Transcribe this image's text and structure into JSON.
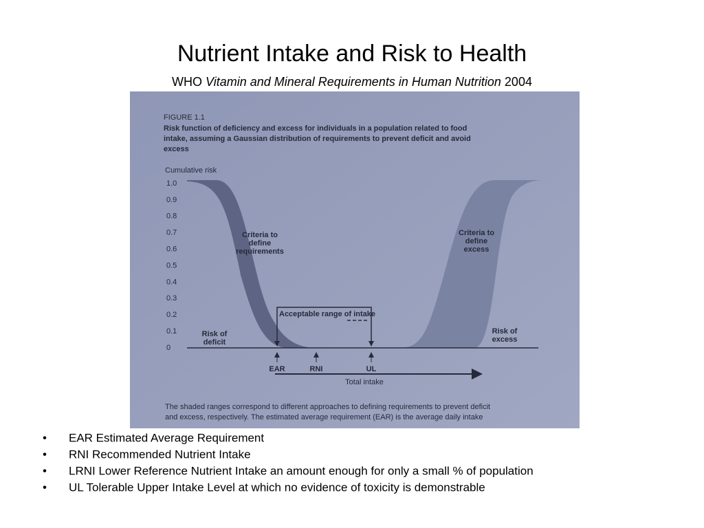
{
  "title": "Nutrient Intake and Risk to Health",
  "subtitle": {
    "prefix": "WHO",
    "italic": "Vitamin and Mineral Requirements in Human Nutrition",
    "suffix": "2004"
  },
  "figure": {
    "label": "FIGURE 1.1",
    "heading": [
      "Risk function of deficiency and excess for individuals in a population related to food",
      "intake, assuming a Gaussian distribution of requirements to prevent deficit and avoid",
      "excess"
    ],
    "y_axis_label": "Cumulative risk",
    "ylim": [
      0,
      1
    ],
    "yticks": [
      0,
      0.1,
      0.2,
      0.3,
      0.4,
      0.5,
      0.6,
      0.7,
      0.8,
      0.9,
      {
        "value": 1,
        "label": "1.0"
      }
    ],
    "left_band_label": [
      "Criteria to",
      "define",
      "requirements"
    ],
    "right_band_label": [
      "Criteria to",
      "define",
      "excess"
    ],
    "deficit_label": [
      "Risk of",
      "deficit"
    ],
    "excess_label": [
      "Risk of",
      "excess"
    ],
    "range_label": "Acceptable range of intake",
    "markers": [
      "EAR",
      "RNI",
      "UL"
    ],
    "x_axis_label": "Total intake",
    "caption": [
      "The shaded ranges correspond to different approaches to defining requirements to prevent deficit",
      "and excess, respectively. The estimated average requirement (EAR) is the average daily intake"
    ]
  },
  "bullets": [
    "EAR Estimated Average Requirement",
    "RNI Recommended Nutrient Intake",
    "LRNI Lower Reference Nutrient Intake an amount enough for only a small % of population",
    "UL Tolerable Upper Intake Level at which no evidence of toxicity is demonstrable"
  ]
}
